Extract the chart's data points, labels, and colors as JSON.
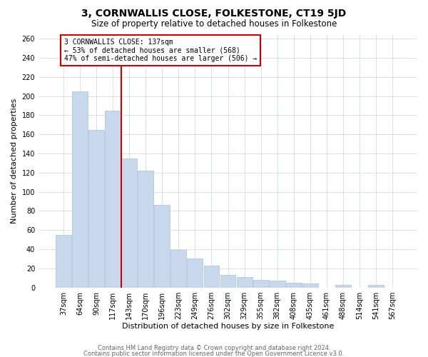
{
  "title": "3, CORNWALLIS CLOSE, FOLKESTONE, CT19 5JD",
  "subtitle": "Size of property relative to detached houses in Folkestone",
  "xlabel": "Distribution of detached houses by size in Folkestone",
  "ylabel": "Number of detached properties",
  "bar_labels": [
    "37sqm",
    "64sqm",
    "90sqm",
    "117sqm",
    "143sqm",
    "170sqm",
    "196sqm",
    "223sqm",
    "249sqm",
    "276sqm",
    "302sqm",
    "329sqm",
    "355sqm",
    "382sqm",
    "408sqm",
    "435sqm",
    "461sqm",
    "488sqm",
    "514sqm",
    "541sqm",
    "567sqm"
  ],
  "bar_values": [
    55,
    205,
    165,
    185,
    135,
    122,
    86,
    39,
    30,
    23,
    13,
    11,
    8,
    7,
    5,
    4,
    0,
    3,
    0,
    3,
    0
  ],
  "bar_color": "#c8d8ec",
  "bar_edge_color": "#a8c0dc",
  "vline_color": "#cc0000",
  "vline_x_index": 3.5,
  "annotation_line1": "3 CORNWALLIS CLOSE: 137sqm",
  "annotation_line2": "← 53% of detached houses are smaller (568)",
  "annotation_line3": "47% of semi-detached houses are larger (506) →",
  "annotation_box_edgecolor": "#cc0000",
  "ylim": [
    0,
    265
  ],
  "yticks": [
    0,
    20,
    40,
    60,
    80,
    100,
    120,
    140,
    160,
    180,
    200,
    220,
    240,
    260
  ],
  "footer1": "Contains HM Land Registry data © Crown copyright and database right 2024.",
  "footer2": "Contains public sector information licensed under the Open Government Licence v3.0.",
  "background_color": "#ffffff",
  "grid_color": "#c8d4e0",
  "title_fontsize": 10,
  "subtitle_fontsize": 8.5,
  "xlabel_fontsize": 8,
  "ylabel_fontsize": 8,
  "tick_fontsize": 7,
  "footer_fontsize": 6
}
